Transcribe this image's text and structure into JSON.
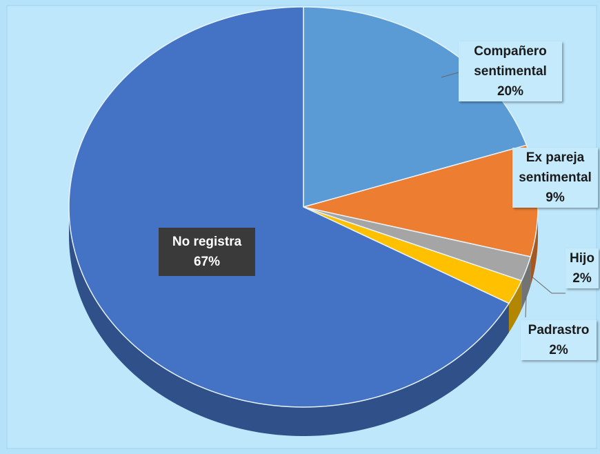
{
  "chart_data": {
    "type": "pie3d",
    "categories": [
      "Compañero sentimental",
      "Ex pareja sentimental",
      "Hijo",
      "Padrastro",
      "No registra"
    ],
    "values": [
      20,
      9,
      2,
      2,
      67
    ],
    "value_labels": [
      "20%",
      "9%",
      "2%",
      "2%",
      "67%"
    ],
    "colors": [
      "#5b9bd5",
      "#ed7d31",
      "#a5a5a5",
      "#ffc000",
      "#4472c4"
    ]
  }
}
